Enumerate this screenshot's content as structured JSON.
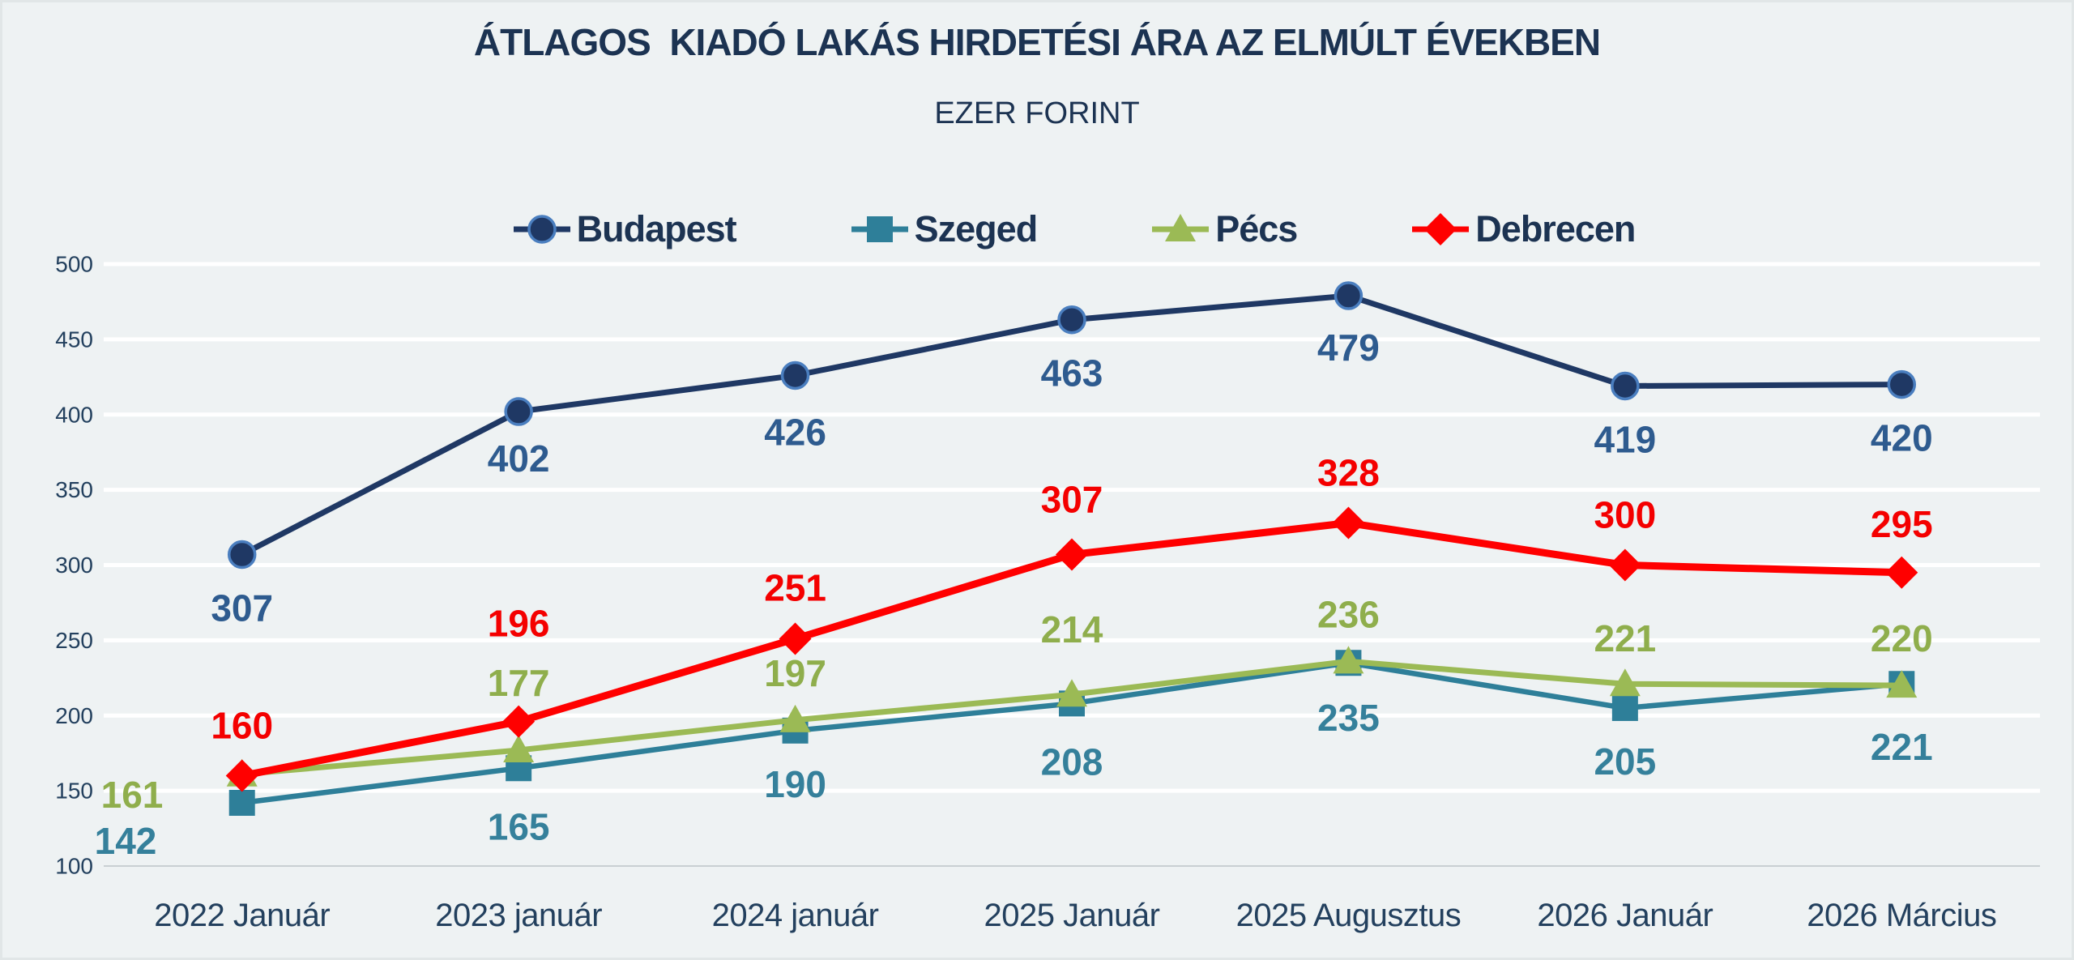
{
  "chart_data": {
    "type": "line",
    "title": "ÁTLAGOS  KIADÓ LAKÁS HIRDETÉSI ÁRA AZ ELMÚLT ÉVEKBEN",
    "subtitle": "EZER FORINT",
    "categories": [
      "2022 Január",
      "2023 január",
      "2024 január",
      "2025 Január",
      "2025 Augusztus",
      "2026 Január",
      "2026 Március"
    ],
    "ylim": [
      100,
      500
    ],
    "ytick_step": 50,
    "ytick_labels": [
      "100",
      "150",
      "200",
      "250",
      "300",
      "350",
      "400",
      "450",
      "500"
    ],
    "grid": true,
    "legend_position": "top",
    "series": [
      {
        "name": "Budapest",
        "marker": "circle",
        "color": "#1F3864",
        "marker_stroke": "#4A7EBF",
        "label_color": "#2E5B8F",
        "values": [
          307,
          402,
          426,
          463,
          479,
          419,
          420
        ]
      },
      {
        "name": "Szeged",
        "marker": "square",
        "color": "#2E7F99",
        "label_color": "#35809B",
        "values": [
          142,
          165,
          190,
          208,
          235,
          205,
          221
        ]
      },
      {
        "name": "Pécs",
        "marker": "triangle",
        "color": "#9BBA55",
        "label_color": "#8FAE4C",
        "values": [
          161,
          177,
          197,
          214,
          236,
          221,
          220
        ]
      },
      {
        "name": "Debrecen",
        "marker": "diamond",
        "color": "#FF0000",
        "label_color": "#F40000",
        "values": [
          160,
          196,
          251,
          307,
          328,
          300,
          295
        ]
      }
    ]
  },
  "colors": {
    "background": "#EEF2F3",
    "gridline": "#FFFFFF",
    "baseline": "#C9CFD2",
    "axis_text": "#23405E",
    "title_text": "#1C3352"
  }
}
